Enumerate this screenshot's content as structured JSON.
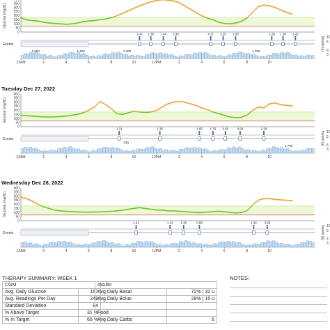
{
  "chart_data": [
    {
      "type": "line",
      "title": "",
      "ylabel": "Glucose (mg/dL)",
      "ylim": [
        0,
        400
      ],
      "y_ticks": [
        0,
        50,
        100,
        150,
        200,
        250,
        300,
        350,
        400
      ],
      "target_range": [
        70,
        180
      ],
      "x": [
        0,
        0.5,
        1,
        1.5,
        2,
        2.5,
        3,
        3.5,
        4,
        4.5,
        5,
        5.5,
        6,
        6.5,
        7,
        7.5,
        8,
        8.5,
        9,
        9.5,
        10,
        10.5,
        11,
        11.5,
        12,
        12.5,
        13,
        13.5,
        14,
        14.5,
        15,
        15.5,
        16,
        16.5,
        17,
        17.5,
        18,
        18.5,
        19,
        19.5,
        20,
        20.5,
        21,
        21.5,
        22,
        22.5,
        23,
        23.5,
        24
      ],
      "series": [
        {
          "values": [
            175,
            150,
            140,
            135,
            120,
            110,
            105,
            100,
            95,
            100,
            110,
            125,
            135,
            140,
            150,
            160,
            175,
            200,
            230,
            260,
            290,
            320,
            345,
            370,
            385,
            395,
            390,
            380,
            360,
            320,
            280,
            240,
            200,
            170,
            150,
            120,
            105,
            100,
            110,
            130,
            170,
            240,
            310,
            330,
            320,
            300,
            270,
            240,
            220
          ]
        }
      ],
      "events_label": "Events",
      "insulin_label": "Insulin (u)",
      "insulin_ticks": [
        5,
        10
      ],
      "basal_ticks": [
        3,
        6
      ],
      "boluses": [
        {
          "t": 10.5,
          "label": "1.42"
        },
        {
          "t": 11.5,
          "label": "1.30"
        },
        {
          "t": 12.6,
          "label": "1.44"
        },
        {
          "t": 13.7,
          "label": "2.30"
        },
        {
          "t": 16.8,
          "label": "4.71"
        },
        {
          "t": 17.9,
          "label": "3.25"
        },
        {
          "t": 19,
          "label": "1.05"
        },
        {
          "t": 22.2,
          "label": "1.28"
        },
        {
          "t": 23.2,
          "label": "1.38"
        },
        {
          "t": 24.3,
          "label": "1.42"
        }
      ],
      "basal_labels": [
        {
          "t": 1.3,
          "label": "1.600"
        },
        {
          "t": 5.3,
          "label": "1.400"
        },
        {
          "t": 9.4,
          "label": "1.400"
        },
        {
          "t": 20.8,
          "label": "1.700"
        }
      ],
      "x_ticks": [
        "12AM",
        "2",
        "4",
        "6",
        "8",
        "10",
        "12PM",
        "2",
        "4",
        "6",
        "8",
        "10"
      ]
    },
    {
      "type": "line",
      "title": "Tuesday Dec 27, 2022",
      "ylabel": "Glucose (mg/dL)",
      "ylim": [
        0,
        400
      ],
      "y_ticks": [
        0,
        50,
        100,
        150,
        200,
        250,
        300,
        350,
        400
      ],
      "target_range": [
        70,
        180
      ],
      "x": [
        0,
        0.5,
        1,
        1.5,
        2,
        2.5,
        3,
        3.5,
        4,
        4.5,
        5,
        5.5,
        6,
        6.5,
        7,
        7.5,
        8,
        8.5,
        9,
        9.5,
        10,
        10.5,
        11,
        11.5,
        12,
        12.5,
        13,
        13.5,
        14,
        14.5,
        15,
        15.5,
        16,
        16.5,
        17,
        17.5,
        18,
        18.5,
        19,
        19.5,
        20,
        20.5,
        21,
        21.5,
        22,
        22.5,
        23,
        23.5,
        24
      ],
      "series": [
        {
          "values": [
            140,
            135,
            130,
            125,
            120,
            118,
            120,
            125,
            130,
            140,
            150,
            170,
            200,
            240,
            310,
            270,
            220,
            160,
            150,
            170,
            190,
            180,
            175,
            180,
            200,
            240,
            280,
            300,
            310,
            300,
            280,
            260,
            230,
            210,
            180,
            160,
            140,
            120,
            110,
            115,
            140,
            200,
            240,
            230,
            280,
            290,
            270,
            260,
            255
          ]
        }
      ],
      "events_label": "Events",
      "insulin_label": "Insulin (u)",
      "insulin_ticks": [
        5,
        10
      ],
      "basal_ticks": [
        3,
        6
      ],
      "boluses": [
        {
          "t": 8.7,
          "label": "1.31"
        },
        {
          "t": 12.3,
          "label": "1.36"
        },
        {
          "t": 15.8,
          "label": "1.65"
        },
        {
          "t": 17,
          "label": "1.76"
        },
        {
          "t": 18.1,
          "label": "3.69"
        },
        {
          "t": 19.4,
          "label": "0.54"
        },
        {
          "t": 21.5,
          "label": "1.30"
        }
      ],
      "carbs_label": "23g",
      "carbs_t": 9.3,
      "basal_labels": [
        {
          "t": 23.7,
          "label": "1.700"
        }
      ],
      "x_ticks": [
        "12AM",
        "2",
        "4",
        "6",
        "8",
        "10",
        "12PM",
        "2",
        "4",
        "6",
        "8",
        "10"
      ]
    },
    {
      "type": "line",
      "title": "Wednesday Dec 28, 2022",
      "ylabel": "Glucose (mg/dL)",
      "ylim": [
        0,
        400
      ],
      "y_ticks": [
        0,
        50,
        100,
        150,
        200,
        250,
        300,
        350,
        400
      ],
      "target_range": [
        70,
        180
      ],
      "x": [
        0,
        0.5,
        1,
        1.5,
        2,
        2.5,
        3,
        3.5,
        4,
        4.5,
        5,
        5.5,
        6,
        6.5,
        7,
        7.5,
        8,
        8.5,
        9,
        9.5,
        10,
        10.5,
        11,
        11.5,
        12,
        12.5,
        13,
        13.5,
        14,
        14.5,
        15,
        15.5,
        16,
        16.5,
        17,
        17.5,
        18,
        18.5,
        19,
        19.5,
        20,
        20.5,
        21,
        21.5,
        22,
        22.5,
        23,
        23.5,
        24
      ],
      "series": [
        {
          "values": [
            290,
            270,
            240,
            200,
            170,
            150,
            130,
            120,
            115,
            110,
            108,
            105,
            105,
            106,
            108,
            110,
            115,
            120,
            130,
            140,
            150,
            160,
            150,
            140,
            130,
            130,
            120,
            120,
            115,
            110,
            105,
            100,
            100,
            105,
            110,
            115,
            110,
            100,
            95,
            100,
            120,
            190,
            250,
            270,
            270,
            260,
            255,
            250,
            245
          ]
        }
      ],
      "events_label": "Events",
      "insulin_label": "Insulin (u)",
      "insulin_ticks": [
        5,
        10
      ],
      "basal_ticks": [
        3,
        6
      ],
      "boluses": [
        {
          "t": 10.2,
          "label": "1.41"
        },
        {
          "t": 13.2,
          "label": "1.42"
        },
        {
          "t": 14.4,
          "label": "1.35"
        },
        {
          "t": 15.8,
          "label": "0.98"
        },
        {
          "t": 20.6,
          "label": "1.34"
        },
        {
          "t": 21.8,
          "label": "3.58"
        }
      ],
      "basal_labels": [],
      "x_ticks": [
        "12AM",
        "2",
        "4",
        "6",
        "8",
        "10",
        "12PM",
        "2",
        "4",
        "6",
        "8",
        "10"
      ]
    }
  ],
  "summary": {
    "title": "THERAPY SUMMARY: WEEK 1",
    "cgm_header": "CGM",
    "insulin_header": "Insulin",
    "cgm_rows": [
      {
        "label": "Avg. Daily Glucose",
        "value": "167"
      },
      {
        "label": "Avg. Readings Per Day",
        "value": "248"
      },
      {
        "label": "Standard Deviation",
        "value": "84"
      },
      {
        "label": "% Above Target",
        "value": "31 %"
      },
      {
        "label": "% In Target",
        "value": "65 %"
      }
    ],
    "insulin_rows": [
      {
        "label": "Avg Daily Basal",
        "value": "72% | 32 u"
      },
      {
        "label": "Avg Daily Bolus",
        "value": "28% | 15 u"
      },
      {
        "label": "",
        "value": ""
      },
      {
        "label": "Food",
        "value": ""
      },
      {
        "label": "Avg Daily Carbs",
        "value": "6"
      }
    ],
    "notes_label": "NOTES:"
  },
  "colors": {
    "high": "#f0a030",
    "in_range": "#6cc82a",
    "target_band": "#eef8d6",
    "target_line": "#c9e49a",
    "low_line": "#c84040",
    "axis": "#444",
    "bolus": "#2a6fc9",
    "basal_fill": "#c5dcef",
    "basal_line": "#4a86c0",
    "event": "#d04040"
  }
}
